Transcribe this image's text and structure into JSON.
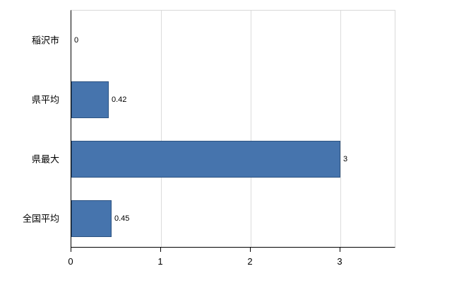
{
  "chart_data": {
    "type": "bar",
    "orientation": "horizontal",
    "categories": [
      "稲沢市",
      "県平均",
      "県最大",
      "全国平均"
    ],
    "values": [
      0,
      0.42,
      3,
      0.45
    ],
    "value_labels": [
      "0",
      "0.42",
      "3",
      "0.45"
    ],
    "title": "",
    "xlabel": "",
    "ylabel": "",
    "xlim": [
      0,
      3.62
    ],
    "x_ticks": [
      0,
      1,
      2,
      3
    ],
    "x_tick_labels": [
      "0",
      "1",
      "2",
      "3"
    ],
    "grid": true,
    "legend": "none",
    "bar_color": "#4674ad",
    "bar_border_color": "#2d5382",
    "gridline_color": "#dcdcdc",
    "axis_color": "#000000",
    "background_color": "#ffffff"
  }
}
